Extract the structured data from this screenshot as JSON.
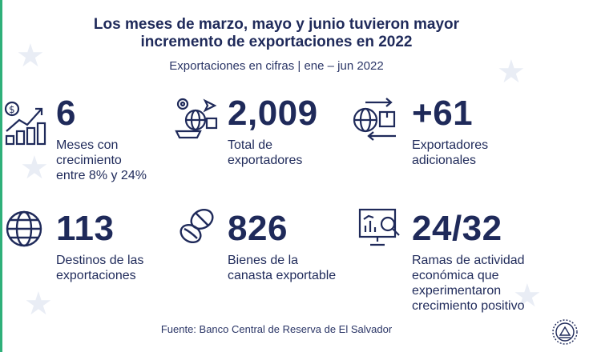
{
  "header": {
    "title_line1": "Los meses de marzo, mayo y junio tuvieron mayor",
    "title_line2": "incremento de exportaciones en 2022",
    "subtitle": "Exportaciones en cifras | ene – jun 2022"
  },
  "stats": [
    {
      "value": "6",
      "desc": [
        "Meses con",
        "crecimiento",
        "entre 8% y 24%"
      ],
      "icon": "money-growth-chart-icon"
    },
    {
      "value": "2,009",
      "desc": [
        "Total de",
        "exportadores"
      ],
      "icon": "global-logistics-icon"
    },
    {
      "value": "+61",
      "desc": [
        "Exportadores",
        "adicionales"
      ],
      "icon": "globe-exchange-icon"
    },
    {
      "value": "113",
      "desc": [
        "Destinos de las",
        "exportaciones"
      ],
      "icon": "globe-icon"
    },
    {
      "value": "826",
      "desc": [
        "Bienes de la",
        "canasta exportable"
      ],
      "icon": "coffee-beans-icon"
    },
    {
      "value": "24/32",
      "desc": [
        "Ramas de actividad",
        "económica que",
        "experimentaron",
        "crecimiento positivo"
      ],
      "icon": "analytics-board-icon"
    }
  ],
  "footer": {
    "source": "Fuente: Banco Central de Reserva de El Salvador",
    "seal_icon": "el-salvador-seal-icon"
  },
  "colors": {
    "primary": "#1f2a5a",
    "accent": "#2fb07a",
    "watermark": "#e9edf5"
  }
}
